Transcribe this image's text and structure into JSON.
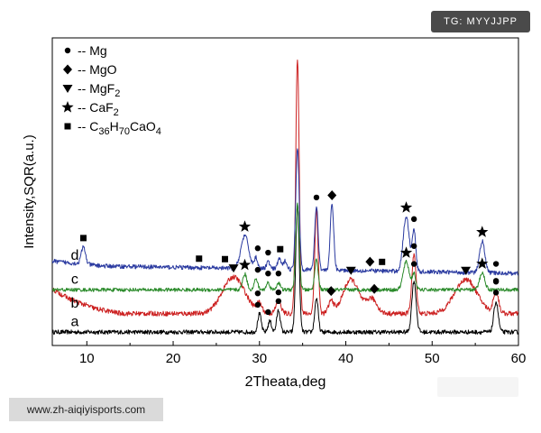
{
  "chart_data": {
    "type": "line",
    "xlabel": "2Theata,deg",
    "ylabel": "Intensity,SQR(a.u.)",
    "xlim": [
      6,
      60
    ],
    "xticks": [
      10,
      20,
      30,
      40,
      50,
      60
    ],
    "y_ticks_shown": false,
    "grid": false,
    "legend_position": "top-left",
    "legend": [
      {
        "marker": "circle",
        "text": "-- Mg"
      },
      {
        "marker": "diamond",
        "text": "-- MgO"
      },
      {
        "marker": "triangle-down",
        "text": "-- MgF",
        "sub": "2"
      },
      {
        "marker": "star",
        "text": "-- CaF",
        "sub": "2"
      },
      {
        "marker": "square",
        "text": "-- C",
        "parts": [
          [
            "36",
            true
          ],
          [
            "H",
            false
          ],
          [
            "70",
            true
          ],
          [
            "CaO",
            false
          ],
          [
            "4",
            true
          ]
        ]
      }
    ],
    "series": [
      {
        "name": "a",
        "color": "#000000",
        "baseline": 0.88,
        "noise": 0.35,
        "background": [
          [
            6,
            0
          ],
          [
            60,
            0
          ]
        ],
        "peaks": [
          [
            30,
            1.5,
            0.2
          ],
          [
            31.2,
            0.9,
            0.2
          ],
          [
            32.2,
            1.8,
            0.2
          ],
          [
            34.4,
            10.5,
            0.2
          ],
          [
            36.6,
            2.8,
            0.2
          ],
          [
            47.9,
            4.2,
            0.25
          ],
          [
            57.4,
            2.5,
            0.25
          ]
        ],
        "markers": [
          [
            29.8,
            "circle"
          ],
          [
            31,
            "circle"
          ],
          [
            32.2,
            "circle"
          ],
          [
            57.4,
            "circle"
          ]
        ]
      },
      {
        "name": "b",
        "color": "#cc2020",
        "baseline": 2.4,
        "noise": 0.4,
        "background": [
          [
            6,
            2.0
          ],
          [
            8,
            1.2
          ],
          [
            11,
            0.4
          ],
          [
            14,
            0.0
          ],
          [
            60,
            0.0
          ]
        ],
        "peaks": [
          [
            27,
            3.0,
            1.3
          ],
          [
            30,
            0.7,
            0.3
          ],
          [
            32.2,
            1.0,
            0.3
          ],
          [
            34.4,
            21.0,
            0.2
          ],
          [
            36.6,
            8.5,
            0.2
          ],
          [
            38.3,
            1.0,
            0.3
          ],
          [
            40.6,
            2.8,
            0.9
          ],
          [
            43,
            1.2,
            0.6
          ],
          [
            47.9,
            4.8,
            0.25
          ],
          [
            53.9,
            2.8,
            1.3
          ],
          [
            57.4,
            1.8,
            0.3
          ]
        ],
        "markers": [
          [
            27,
            "triangle-down"
          ],
          [
            29.8,
            "circle"
          ],
          [
            32.2,
            "circle"
          ],
          [
            38.3,
            "diamond"
          ],
          [
            40.6,
            "triangle-down"
          ],
          [
            43.3,
            "diamond"
          ],
          [
            47.9,
            "circle"
          ],
          [
            53.9,
            "triangle-down"
          ],
          [
            57.4,
            "circle"
          ]
        ]
      },
      {
        "name": "c",
        "color": "#2a8a2a",
        "baseline": 4.35,
        "noise": 0.3,
        "background": [
          [
            6,
            0
          ],
          [
            60,
            0
          ]
        ],
        "peaks": [
          [
            28.3,
            1.3,
            0.25
          ],
          [
            29.6,
            0.9,
            0.2
          ],
          [
            31,
            0.6,
            0.2
          ],
          [
            32.2,
            0.6,
            0.2
          ],
          [
            34.4,
            7.0,
            0.2
          ],
          [
            36.6,
            2.5,
            0.2
          ],
          [
            47,
            2.3,
            0.35
          ],
          [
            47.9,
            1.3,
            0.2
          ],
          [
            55.8,
            1.4,
            0.3
          ]
        ],
        "markers": [
          [
            28.3,
            "star"
          ],
          [
            29.8,
            "circle"
          ],
          [
            31,
            "circle"
          ],
          [
            32.2,
            "circle"
          ],
          [
            47,
            "star"
          ],
          [
            47.9,
            "circle"
          ],
          [
            55.8,
            "star"
          ],
          [
            57.4,
            "circle"
          ]
        ]
      },
      {
        "name": "d",
        "color": "#2a3aa0",
        "baseline": 6.3,
        "noise": 0.35,
        "background": [
          [
            6,
            0.4
          ],
          [
            12,
            0.0
          ],
          [
            60,
            -0.6
          ]
        ],
        "peaks": [
          [
            9.6,
            1.4,
            0.25
          ],
          [
            28.3,
            2.7,
            0.45
          ],
          [
            29.6,
            0.9,
            0.2
          ],
          [
            31,
            0.6,
            0.2
          ],
          [
            32.3,
            0.9,
            0.2
          ],
          [
            33,
            0.7,
            0.2
          ],
          [
            34.4,
            10.0,
            0.2
          ],
          [
            36.6,
            5.2,
            0.2
          ],
          [
            38.4,
            5.4,
            0.2
          ],
          [
            47,
            4.5,
            0.35
          ],
          [
            47.9,
            3.4,
            0.2
          ],
          [
            55.8,
            2.6,
            0.3
          ]
        ],
        "markers": [
          [
            9.6,
            "square"
          ],
          [
            23,
            "square"
          ],
          [
            26,
            "square"
          ],
          [
            28.3,
            "star"
          ],
          [
            29.8,
            "circle"
          ],
          [
            31,
            "circle"
          ],
          [
            32.4,
            "square"
          ],
          [
            36.6,
            "circle"
          ],
          [
            38.4,
            "diamond"
          ],
          [
            42.8,
            "diamond"
          ],
          [
            44.2,
            "square"
          ],
          [
            47,
            "star"
          ],
          [
            47.9,
            "circle"
          ],
          [
            55.8,
            "star"
          ],
          [
            57.4,
            "circle"
          ]
        ]
      }
    ]
  },
  "watermark_top": "TG: MYYJJPP",
  "watermark_bottom": "www.zh-aiqiyisports.com"
}
